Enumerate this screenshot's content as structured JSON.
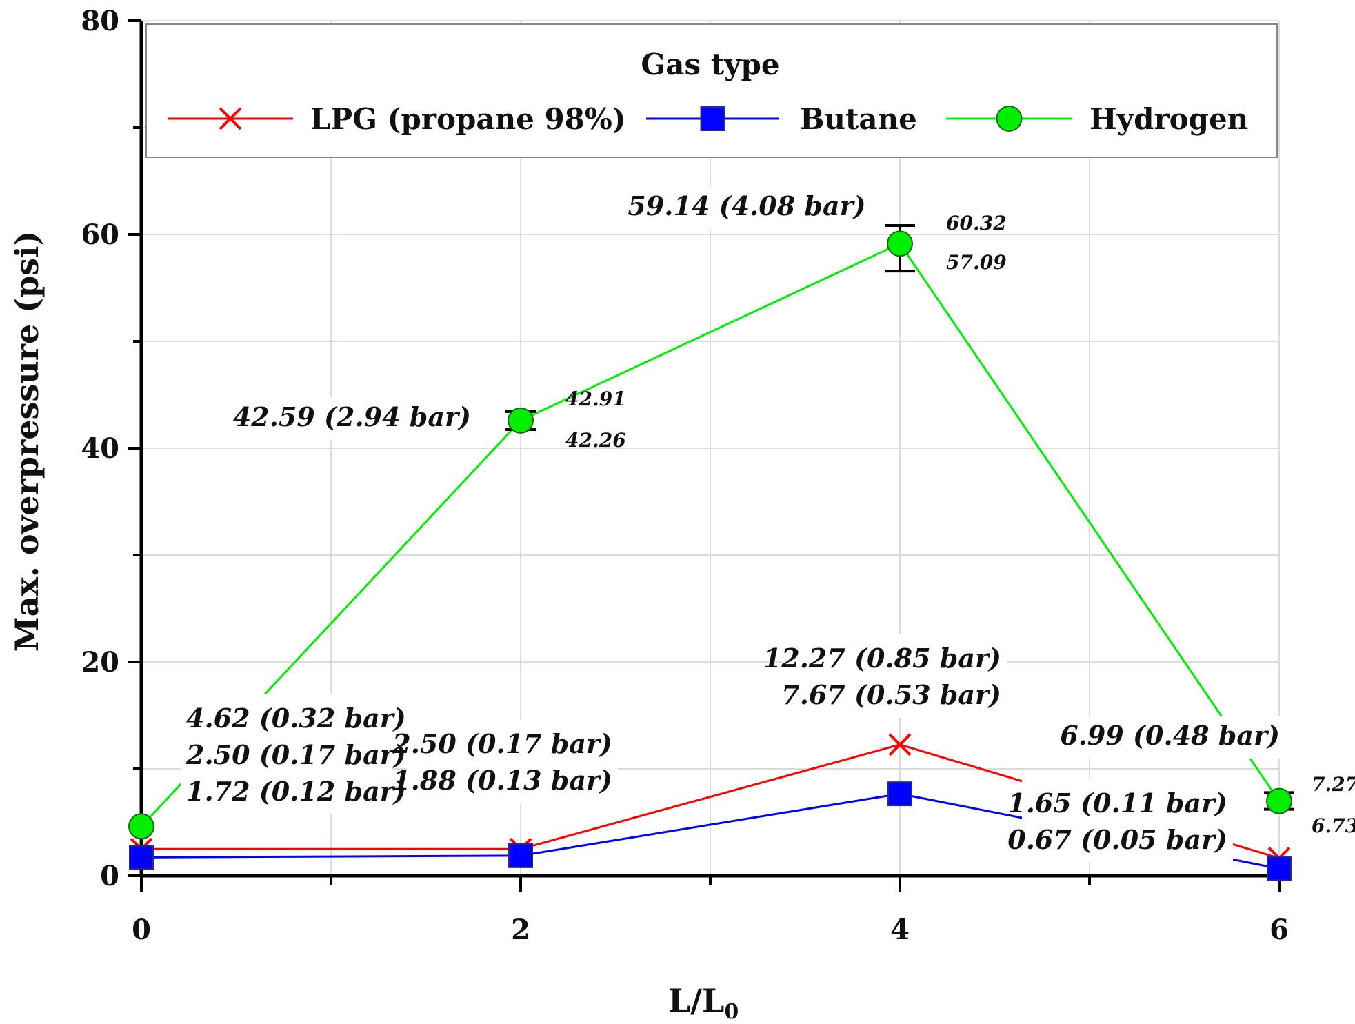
{
  "chart_data": {
    "type": "line",
    "x": [
      0,
      2,
      4,
      6
    ],
    "xlim": [
      0,
      6
    ],
    "ylim": [
      0,
      80
    ],
    "x_ticks": [
      "0",
      "2",
      "4",
      "6"
    ],
    "y_ticks": [
      "0",
      "20",
      "40",
      "60",
      "80"
    ],
    "xlabel": "L/L",
    "xlabel_sub": "0",
    "ylabel": "Max. overpressure (psi)",
    "grid": true,
    "legend": {
      "title": "Gas type",
      "placement": "top"
    },
    "series": [
      {
        "name": "LPG (propane 98%)",
        "color": "#ff0000",
        "marker": "x",
        "values": [
          2.5,
          2.5,
          12.27,
          1.65
        ]
      },
      {
        "name": "Butane",
        "color": "#0000ff",
        "marker": "square",
        "values": [
          1.72,
          1.88,
          7.67,
          0.67
        ]
      },
      {
        "name": "Hydrogen",
        "color": "#00ee00",
        "marker": "circle",
        "values": [
          4.62,
          42.59,
          59.14,
          6.99
        ],
        "error_bars": [
          null,
          {
            "high": 42.91,
            "low": 42.26
          },
          {
            "high": 60.32,
            "low": 57.09
          },
          {
            "high": 7.27,
            "low": 6.73
          }
        ]
      }
    ],
    "annotations": {
      "x0": [
        "4.62 (0.32 bar)",
        "2.50 (0.17 bar)",
        "1.72 (0.12 bar)"
      ],
      "x2_h2": "42.59 (2.94 bar)",
      "x2_hi": "42.91",
      "x2_lo": "42.26",
      "x2_low": [
        "2.50 (0.17 bar)",
        "1.88 (0.13 bar)"
      ],
      "x4_h2": "59.14 (4.08 bar)",
      "x4_hi": "60.32",
      "x4_lo": "57.09",
      "x4_low": [
        "12.27 (0.85 bar)",
        "7.67 (0.53 bar)"
      ],
      "x6_h2": "6.99 (0.48 bar)",
      "x6_hi": "7.27",
      "x6_lo": "6.73",
      "x6_low": [
        "1.65 (0.11 bar)",
        "0.67 (0.05 bar)"
      ]
    }
  }
}
